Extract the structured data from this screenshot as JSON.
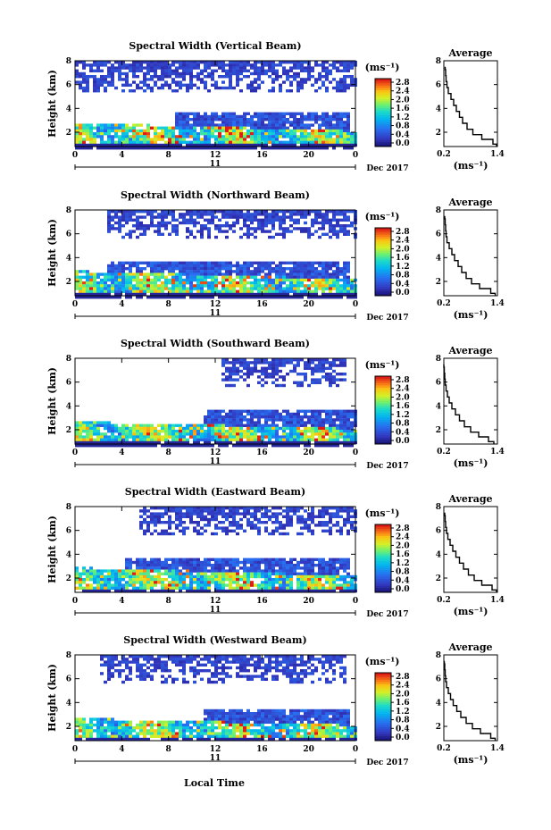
{
  "figure": {
    "date_label": "Dec 2017",
    "day_label": "11",
    "xlabel": "Local Time",
    "average_title": "Average",
    "colorbar_unit": "(ms⁻¹)",
    "average_xlabel": "(ms⁻¹)"
  },
  "chart_data": [
    {
      "type": "heatmap",
      "title": "Spectral Width (Vertical Beam)",
      "beam": "vertical",
      "ylabel": "Height (km)",
      "xlim": [
        0,
        24
      ],
      "ylim": [
        0.8,
        8
      ],
      "xticks": [
        "0",
        "4",
        "8",
        "12",
        "16",
        "20",
        "0"
      ],
      "yticks": [
        "2",
        "4",
        "6",
        "8"
      ],
      "colorbar_ticks": [
        "0.0",
        "0.4",
        "0.8",
        "1.2",
        "1.6",
        "2.0",
        "2.4",
        "2.8"
      ],
      "colorbar_range": [
        0,
        3.0
      ],
      "layers": {
        "upper": {
          "ybottom": 5.5,
          "ytop": 8,
          "tstart": 0,
          "tend": 24
        },
        "lower": {
          "ytop_start": 2.9,
          "ytop_end": 2.2,
          "mid_top": 3.7,
          "mid_tstart": 8.5,
          "mid_tend": 23.5
        }
      },
      "average_profile": {
        "xlim": [
          0.2,
          1.4
        ],
        "xticks": [
          "0.2",
          "1.4"
        ],
        "yticks": [
          "2",
          "4",
          "6",
          "8"
        ],
        "height": [
          0.8,
          1.2,
          1.6,
          2.0,
          2.5,
          3.0,
          3.5,
          4.0,
          4.5,
          5.0,
          5.5,
          6.0,
          6.5,
          7.0,
          7.5
        ],
        "width": [
          1.38,
          1.3,
          1.05,
          0.85,
          0.72,
          0.62,
          0.55,
          0.48,
          0.42,
          0.36,
          0.3,
          0.27,
          0.25,
          0.24,
          0.23
        ]
      }
    },
    {
      "type": "heatmap",
      "title": "Spectral Width (Northward Beam)",
      "beam": "northward",
      "ylabel": "Height (km)",
      "xlim": [
        0,
        24
      ],
      "ylim": [
        0.8,
        8
      ],
      "xticks": [
        "0",
        "4",
        "8",
        "12",
        "16",
        "20",
        "0"
      ],
      "yticks": [
        "2",
        "4",
        "6",
        "8"
      ],
      "colorbar_ticks": [
        "0.0",
        "0.4",
        "0.8",
        "1.2",
        "1.6",
        "2.0",
        "2.4",
        "2.8"
      ],
      "colorbar_range": [
        0,
        3.0
      ],
      "layers": {
        "upper": {
          "ybottom": 5.8,
          "ytop": 8,
          "tstart": 2.5,
          "tend": 24
        },
        "lower": {
          "ytop_start": 3.0,
          "ytop_end": 2.3,
          "mid_top": 3.8,
          "mid_tstart": 2.5,
          "mid_tend": 23.5
        }
      },
      "average_profile": {
        "xlim": [
          0.2,
          1.4
        ],
        "xticks": [
          "0.2",
          "1.4"
        ],
        "yticks": [
          "2",
          "4",
          "6",
          "8"
        ],
        "height": [
          0.8,
          1.2,
          1.6,
          2.0,
          2.5,
          3.0,
          3.5,
          4.0,
          4.5,
          5.0,
          5.5,
          6.0,
          6.5,
          7.0,
          7.5
        ],
        "width": [
          1.35,
          1.25,
          1.0,
          0.82,
          0.7,
          0.6,
          0.52,
          0.44,
          0.38,
          0.32,
          0.27,
          0.25,
          0.24,
          0.23,
          0.22
        ]
      }
    },
    {
      "type": "heatmap",
      "title": "Spectral Width (Southward Beam)",
      "beam": "southward",
      "ylabel": "Height (km)",
      "xlim": [
        0,
        24
      ],
      "ylim": [
        0.8,
        8
      ],
      "xticks": [
        "0",
        "4",
        "8",
        "12",
        "16",
        "20",
        "0"
      ],
      "yticks": [
        "2",
        "4",
        "6",
        "8"
      ],
      "colorbar_ticks": [
        "0.0",
        "0.4",
        "0.8",
        "1.2",
        "1.6",
        "2.0",
        "2.4",
        "2.8"
      ],
      "colorbar_range": [
        0,
        3.0
      ],
      "layers": {
        "upper": {
          "ybottom": 5.8,
          "ytop": 8,
          "tstart": 12.5,
          "tend": 23
        },
        "lower": {
          "ytop_start": 2.8,
          "ytop_end": 2.2,
          "mid_top": 3.7,
          "mid_tstart": 11,
          "mid_tend": 24
        }
      },
      "average_profile": {
        "xlim": [
          0.2,
          1.4
        ],
        "xticks": [
          "0.2",
          "1.4"
        ],
        "yticks": [
          "2",
          "4",
          "6",
          "8"
        ],
        "height": [
          0.8,
          1.2,
          1.6,
          2.0,
          2.5,
          3.0,
          3.5,
          4.0,
          4.5,
          5.0,
          5.5,
          6.0,
          6.5,
          7.0,
          7.5
        ],
        "width": [
          1.32,
          1.2,
          0.98,
          0.8,
          0.66,
          0.55,
          0.46,
          0.38,
          0.32,
          0.28,
          0.25,
          0.23,
          0.22,
          0.21,
          0.2
        ]
      }
    },
    {
      "type": "heatmap",
      "title": "Spectral Width (Eastward Beam)",
      "beam": "eastward",
      "ylabel": "Height (km)",
      "xlim": [
        0,
        24
      ],
      "ylim": [
        0.8,
        8
      ],
      "xticks": [
        "0",
        "4",
        "8",
        "12",
        "16",
        "20",
        "0"
      ],
      "yticks": [
        "2",
        "4",
        "6",
        "8"
      ],
      "colorbar_ticks": [
        "0.0",
        "0.4",
        "0.8",
        "1.2",
        "1.6",
        "2.0",
        "2.4",
        "2.8"
      ],
      "colorbar_range": [
        0,
        3.0
      ],
      "layers": {
        "upper": {
          "ybottom": 5.6,
          "ytop": 8,
          "tstart": 5.5,
          "tend": 24
        },
        "lower": {
          "ytop_start": 3.0,
          "ytop_end": 2.3,
          "mid_top": 3.9,
          "mid_tstart": 4.0,
          "mid_tend": 23.5
        }
      },
      "average_profile": {
        "xlim": [
          0.2,
          1.4
        ],
        "xticks": [
          "0.2",
          "1.4"
        ],
        "yticks": [
          "2",
          "4",
          "6",
          "8"
        ],
        "height": [
          0.8,
          1.2,
          1.6,
          2.0,
          2.5,
          3.0,
          3.5,
          4.0,
          4.5,
          5.0,
          5.5,
          6.0,
          6.5,
          7.0,
          7.5
        ],
        "width": [
          1.38,
          1.28,
          1.05,
          0.88,
          0.75,
          0.64,
          0.55,
          0.47,
          0.4,
          0.34,
          0.29,
          0.26,
          0.24,
          0.23,
          0.22
        ]
      }
    },
    {
      "type": "heatmap",
      "title": "Spectral Width (Westward Beam)",
      "beam": "westward",
      "ylabel": "Height (km)",
      "xlim": [
        0,
        24
      ],
      "ylim": [
        0.8,
        8
      ],
      "xticks": [
        "0",
        "4",
        "8",
        "12",
        "16",
        "20",
        "0"
      ],
      "yticks": [
        "2",
        "4",
        "6",
        "8"
      ],
      "colorbar_ticks": [
        "0.0",
        "0.4",
        "0.8",
        "1.2",
        "1.6",
        "2.0",
        "2.4",
        "2.8"
      ],
      "colorbar_range": [
        0,
        3.0
      ],
      "layers": {
        "upper": {
          "ybottom": 5.8,
          "ytop": 8,
          "tstart": 2.0,
          "tend": 23
        },
        "lower": {
          "ytop_start": 2.8,
          "ytop_end": 2.2,
          "mid_top": 3.6,
          "mid_tstart": 11,
          "mid_tend": 23.5
        }
      },
      "average_profile": {
        "xlim": [
          0.2,
          1.4
        ],
        "xticks": [
          "0.2",
          "1.4"
        ],
        "yticks": [
          "2",
          "4",
          "6",
          "8"
        ],
        "height": [
          0.8,
          1.2,
          1.6,
          2.0,
          2.5,
          3.0,
          3.5,
          4.0,
          4.5,
          5.0,
          5.5,
          6.0,
          6.5,
          7.0,
          7.5
        ],
        "width": [
          1.35,
          1.25,
          1.02,
          0.84,
          0.7,
          0.58,
          0.49,
          0.41,
          0.35,
          0.3,
          0.26,
          0.24,
          0.23,
          0.22,
          0.21
        ]
      }
    }
  ]
}
